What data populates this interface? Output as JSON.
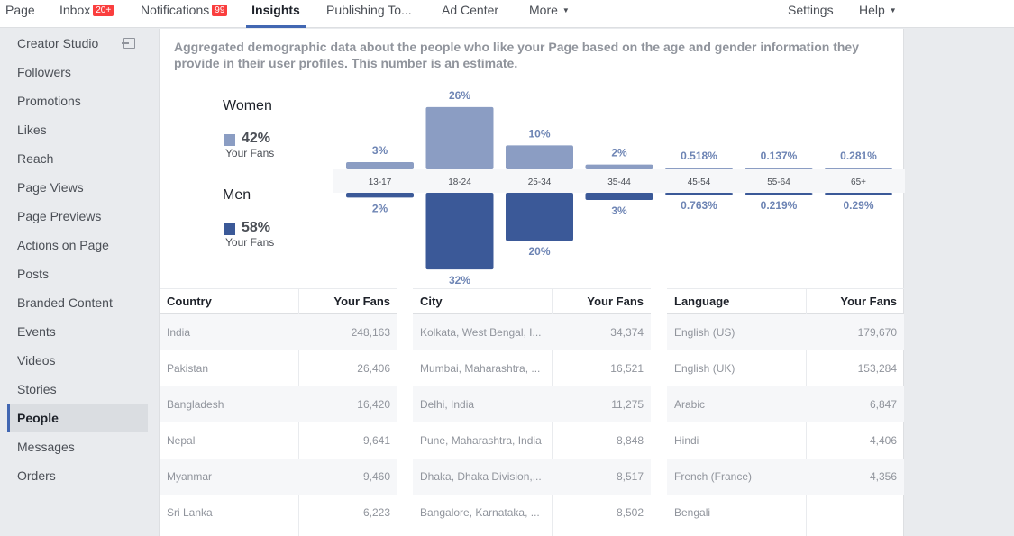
{
  "nav": {
    "page": "Page",
    "inbox": "Inbox",
    "inbox_badge": "20+",
    "notifications": "Notifications",
    "notifications_badge": "99",
    "insights": "Insights",
    "publishing": "Publishing To...",
    "ad_center": "Ad Center",
    "more": "More",
    "settings": "Settings",
    "help": "Help"
  },
  "sidebar": {
    "items": [
      {
        "label": "Creator Studio"
      },
      {
        "label": "Followers"
      },
      {
        "label": "Promotions"
      },
      {
        "label": "Likes"
      },
      {
        "label": "Reach"
      },
      {
        "label": "Page Views"
      },
      {
        "label": "Page Previews"
      },
      {
        "label": "Actions on Page"
      },
      {
        "label": "Posts"
      },
      {
        "label": "Branded Content"
      },
      {
        "label": "Events"
      },
      {
        "label": "Videos"
      },
      {
        "label": "Stories"
      },
      {
        "label": "People"
      },
      {
        "label": "Messages"
      },
      {
        "label": "Orders"
      }
    ],
    "active": "People"
  },
  "main": {
    "description": "Aggregated demographic data about the people who like your Page based on the age and gender information they provide in their user profiles. This number is an estimate.",
    "women": {
      "title": "Women",
      "pct": "42%",
      "sub": "Your Fans"
    },
    "men": {
      "title": "Men",
      "pct": "58%",
      "sub": "Your Fans"
    }
  },
  "colors": {
    "women": "#8b9dc3",
    "men": "#3b5998",
    "accent": "#4267b2"
  },
  "chart_data": {
    "type": "bar",
    "categories": [
      "13-17",
      "18-24",
      "25-34",
      "35-44",
      "45-54",
      "55-64",
      "65+"
    ],
    "series": [
      {
        "name": "Women",
        "values": [
          3,
          26,
          10,
          2,
          0.518,
          0.137,
          0.281
        ],
        "labels": [
          "3%",
          "26%",
          "10%",
          "2%",
          "0.518%",
          "0.137%",
          "0.281%"
        ]
      },
      {
        "name": "Men",
        "values": [
          2,
          32,
          20,
          3,
          0.763,
          0.219,
          0.29
        ],
        "labels": [
          "2%",
          "32%",
          "20%",
          "3%",
          "0.763%",
          "0.219%",
          "0.29%"
        ]
      }
    ]
  },
  "tables": {
    "country": {
      "headers": [
        "Country",
        "Your Fans"
      ],
      "rows": [
        [
          "India",
          "248,163"
        ],
        [
          "Pakistan",
          "26,406"
        ],
        [
          "Bangladesh",
          "16,420"
        ],
        [
          "Nepal",
          "9,641"
        ],
        [
          "Myanmar",
          "9,460"
        ],
        [
          "Sri Lanka",
          "6,223"
        ]
      ]
    },
    "city": {
      "headers": [
        "City",
        "Your Fans"
      ],
      "rows": [
        [
          "Kolkata, West Bengal, I...",
          "34,374"
        ],
        [
          "Mumbai, Maharashtra, ...",
          "16,521"
        ],
        [
          "Delhi, India",
          "11,275"
        ],
        [
          "Pune, Maharashtra, India",
          "8,848"
        ],
        [
          "Dhaka, Dhaka Division,...",
          "8,517"
        ],
        [
          "Bangalore, Karnataka, ...",
          "8,502"
        ]
      ]
    },
    "language": {
      "headers": [
        "Language",
        "Your Fans"
      ],
      "rows": [
        [
          "English (US)",
          "179,670"
        ],
        [
          "English (UK)",
          "153,284"
        ],
        [
          "Arabic",
          "6,847"
        ],
        [
          "Hindi",
          "4,406"
        ],
        [
          "French (France)",
          "4,356"
        ],
        [
          "Bengali",
          ""
        ]
      ]
    }
  }
}
